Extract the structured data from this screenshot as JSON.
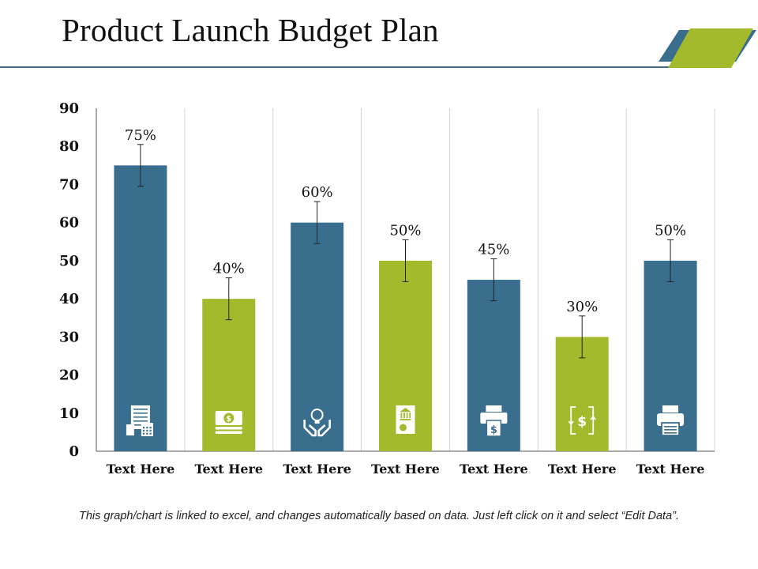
{
  "title": "Product Launch Budget Plan",
  "footnote": "This graph/chart is linked to excel, and changes automatically based on data. Just left click on it and select “Edit Data”.",
  "colors": {
    "blue": "#3a6e8f",
    "green": "#a3ba2c",
    "rule": "#3e6b8c"
  },
  "chart_data": {
    "type": "bar",
    "title": "",
    "xlabel": "",
    "ylabel": "",
    "ylim": [
      0,
      90
    ],
    "yticks": [
      "0",
      "10",
      "20",
      "30",
      "40",
      "50",
      "60",
      "70",
      "80",
      "90"
    ],
    "categories": [
      "Text Here",
      "Text Here",
      "Text Here",
      "Text Here",
      "Text Here",
      "Text Here",
      "Text Here"
    ],
    "values": [
      75,
      40,
      60,
      50,
      45,
      30,
      50
    ],
    "data_labels": [
      "75%",
      "40%",
      "60%",
      "50%",
      "45%",
      "30%",
      "50%"
    ],
    "error": [
      5.5,
      5.5,
      5.5,
      5.5,
      5.5,
      5.5,
      5.5
    ],
    "bar_colors": [
      "#3a6e8f",
      "#a3ba2c",
      "#3a6e8f",
      "#a3ba2c",
      "#3a6e8f",
      "#a3ba2c",
      "#3a6e8f"
    ],
    "icons": [
      "receipt-calculator-icon",
      "money-stack-icon",
      "hands-lightbulb-icon",
      "bank-document-icon",
      "printer-dollar-icon",
      "dollar-exchange-icon",
      "printer-icon"
    ],
    "grid": true
  }
}
